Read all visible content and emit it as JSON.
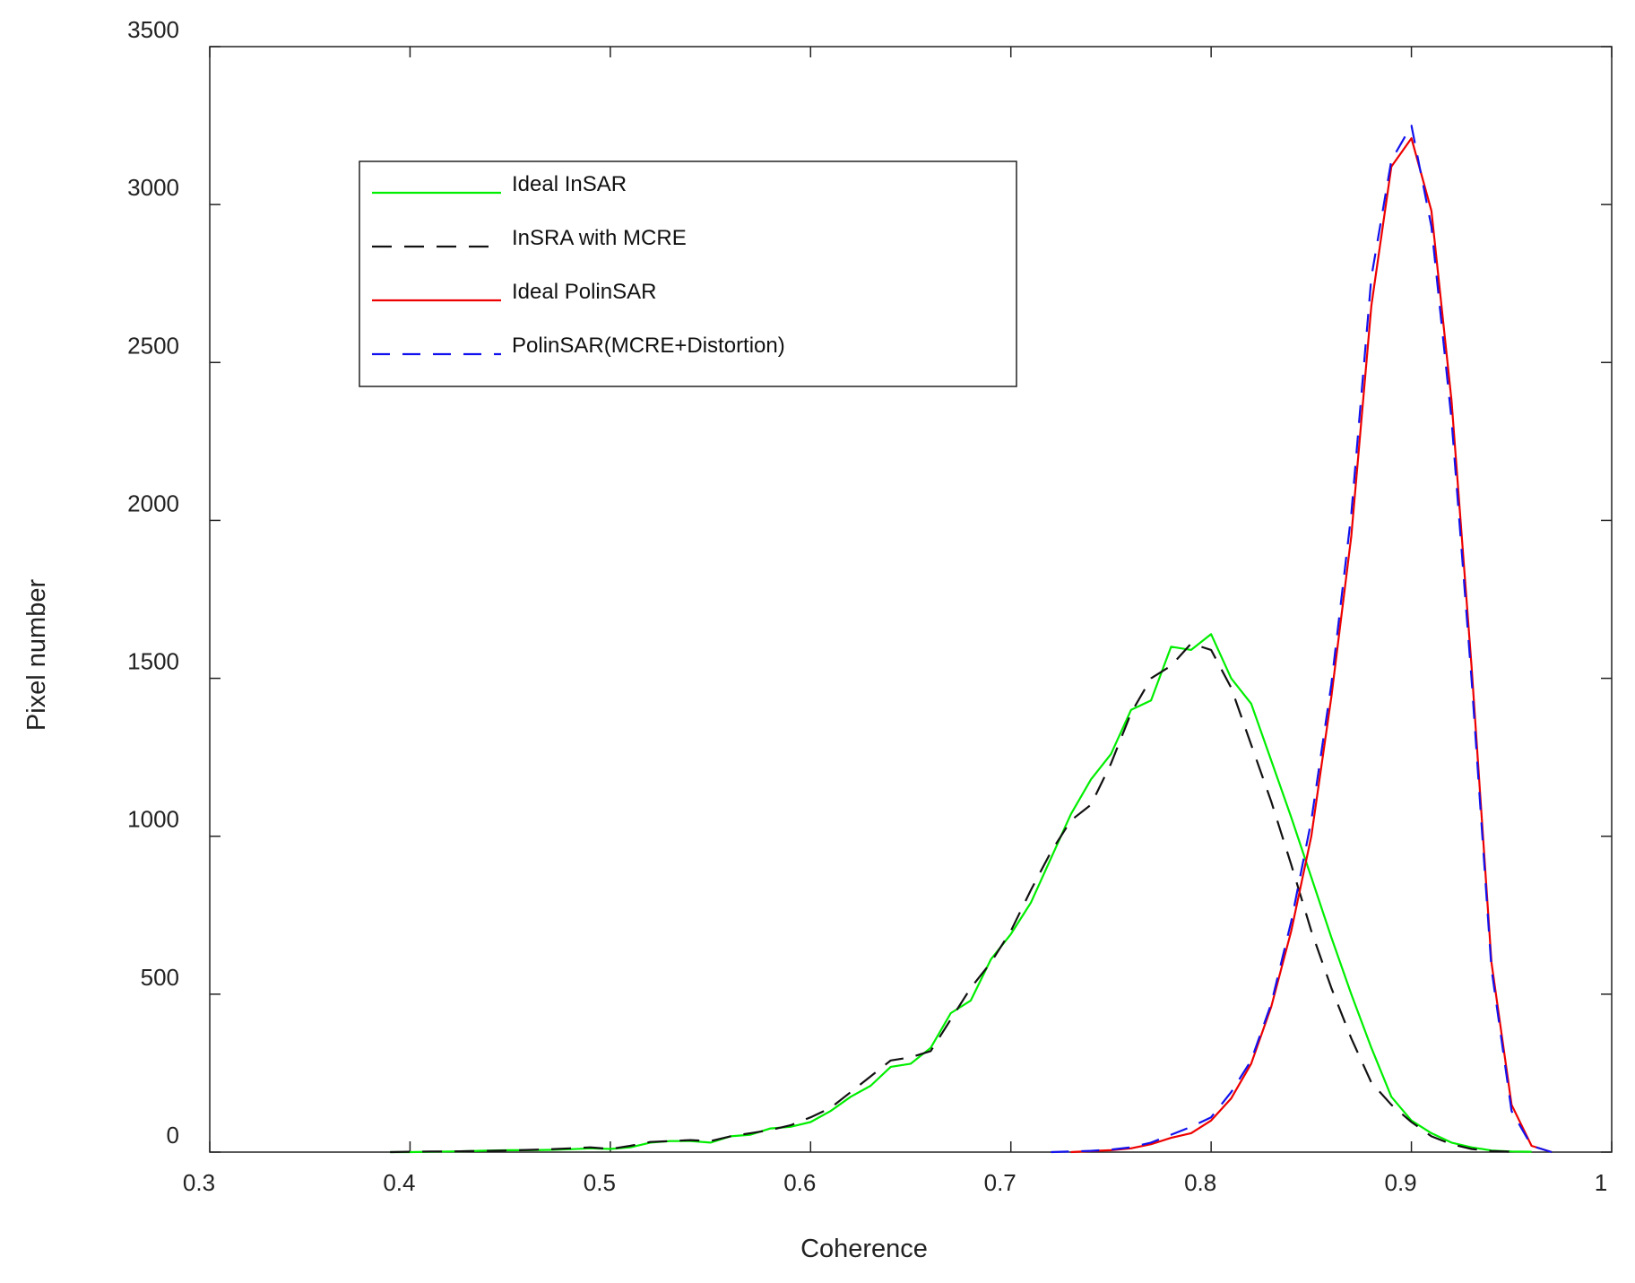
{
  "chart_data": {
    "type": "line",
    "xlabel": "Coherence",
    "ylabel": "Pixel number",
    "xlim": [
      0.3,
      1.0
    ],
    "ylim": [
      0,
      3500
    ],
    "x_ticks": [
      "0.3",
      "0.4",
      "0.5",
      "0.6",
      "0.7",
      "0.8",
      "0.9",
      "1"
    ],
    "y_ticks": [
      "0",
      "500",
      "1000",
      "1500",
      "2000",
      "2500",
      "3000",
      "3500"
    ],
    "grid": false,
    "legend_position": "top-left",
    "series": [
      {
        "name": "Ideal InSAR",
        "color": "#00ee00",
        "dash": "solid",
        "x": [
          0.39,
          0.4,
          0.41,
          0.42,
          0.43,
          0.44,
          0.45,
          0.46,
          0.47,
          0.48,
          0.49,
          0.5,
          0.51,
          0.52,
          0.53,
          0.54,
          0.55,
          0.56,
          0.57,
          0.58,
          0.59,
          0.6,
          0.61,
          0.62,
          0.63,
          0.64,
          0.65,
          0.66,
          0.67,
          0.68,
          0.69,
          0.7,
          0.71,
          0.72,
          0.73,
          0.74,
          0.75,
          0.76,
          0.77,
          0.78,
          0.79,
          0.8,
          0.81,
          0.82,
          0.83,
          0.84,
          0.85,
          0.86,
          0.87,
          0.88,
          0.89,
          0.9,
          0.91,
          0.92,
          0.93,
          0.94,
          0.95,
          0.96
        ],
        "y": [
          0,
          0,
          1,
          2,
          3,
          5,
          6,
          6,
          7,
          9,
          12,
          10,
          15,
          30,
          35,
          35,
          30,
          50,
          55,
          75,
          80,
          95,
          130,
          175,
          210,
          270,
          280,
          330,
          440,
          480,
          610,
          690,
          790,
          930,
          1070,
          1180,
          1260,
          1400,
          1430,
          1600,
          1590,
          1640,
          1500,
          1420,
          1240,
          1060,
          870,
          680,
          500,
          330,
          175,
          100,
          60,
          30,
          15,
          5,
          2,
          1
        ]
      },
      {
        "name": "InSRA with MCRE",
        "color": "#111111",
        "dash": "long-dash",
        "x": [
          0.39,
          0.4,
          0.41,
          0.42,
          0.43,
          0.44,
          0.45,
          0.46,
          0.47,
          0.48,
          0.49,
          0.5,
          0.51,
          0.52,
          0.53,
          0.54,
          0.55,
          0.56,
          0.57,
          0.58,
          0.59,
          0.6,
          0.61,
          0.62,
          0.63,
          0.64,
          0.65,
          0.66,
          0.67,
          0.68,
          0.69,
          0.7,
          0.71,
          0.72,
          0.73,
          0.74,
          0.75,
          0.76,
          0.77,
          0.78,
          0.79,
          0.8,
          0.81,
          0.82,
          0.83,
          0.84,
          0.85,
          0.86,
          0.87,
          0.88,
          0.89,
          0.9,
          0.91,
          0.92,
          0.93,
          0.94,
          0.95
        ],
        "y": [
          0,
          1,
          2,
          2,
          3,
          4,
          5,
          7,
          9,
          12,
          15,
          10,
          20,
          32,
          35,
          38,
          35,
          50,
          60,
          70,
          85,
          110,
          140,
          190,
          240,
          290,
          300,
          320,
          420,
          520,
          600,
          700,
          830,
          950,
          1050,
          1100,
          1230,
          1390,
          1500,
          1540,
          1610,
          1590,
          1470,
          1290,
          1110,
          910,
          700,
          520,
          360,
          220,
          150,
          95,
          50,
          25,
          10,
          3,
          1
        ]
      },
      {
        "name": "Ideal PolinSAR",
        "color": "#ee0000",
        "dash": "solid",
        "x": [
          0.73,
          0.74,
          0.75,
          0.76,
          0.77,
          0.78,
          0.79,
          0.8,
          0.81,
          0.82,
          0.83,
          0.84,
          0.85,
          0.86,
          0.87,
          0.88,
          0.89,
          0.9,
          0.91,
          0.92,
          0.93,
          0.94,
          0.95,
          0.96,
          0.97
        ],
        "y": [
          0,
          3,
          6,
          12,
          25,
          45,
          60,
          100,
          170,
          280,
          460,
          700,
          1000,
          1440,
          1950,
          2680,
          3120,
          3210,
          2980,
          2380,
          1540,
          600,
          150,
          20,
          0
        ]
      },
      {
        "name": "PolinSAR(MCRE+Distortion)",
        "color": "#1111ee",
        "dash": "dash",
        "x": [
          0.72,
          0.73,
          0.74,
          0.75,
          0.76,
          0.77,
          0.78,
          0.79,
          0.8,
          0.81,
          0.82,
          0.83,
          0.84,
          0.85,
          0.86,
          0.87,
          0.88,
          0.89,
          0.9,
          0.91,
          0.92,
          0.93,
          0.94,
          0.95,
          0.96,
          0.97
        ],
        "y": [
          0,
          2,
          4,
          8,
          15,
          30,
          55,
          80,
          110,
          190,
          290,
          470,
          730,
          1050,
          1480,
          2020,
          2770,
          3140,
          3250,
          2930,
          2320,
          1500,
          580,
          130,
          20,
          0
        ]
      }
    ]
  }
}
